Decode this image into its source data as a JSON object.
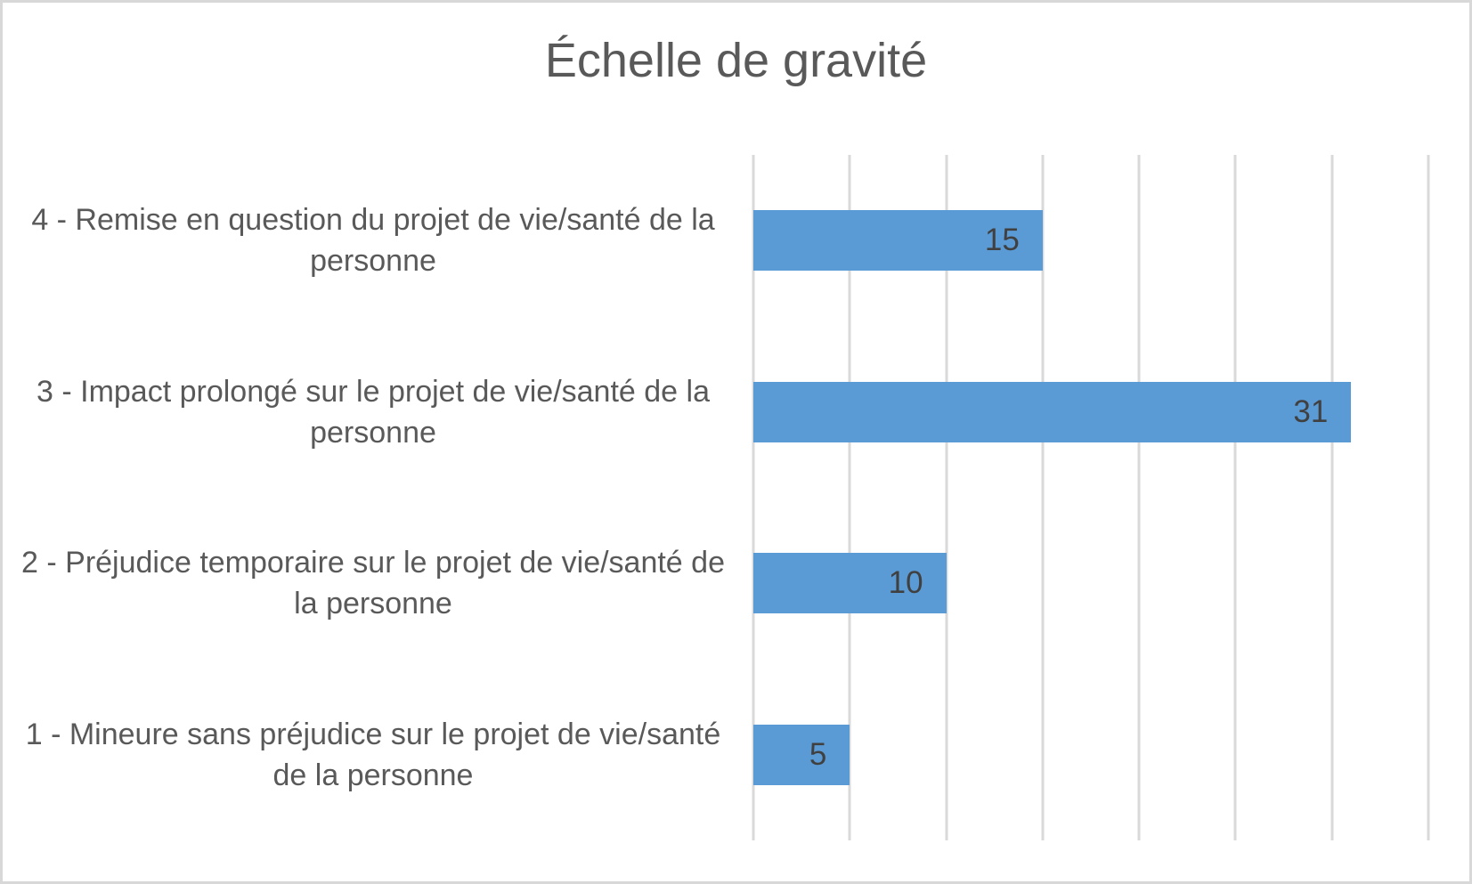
{
  "chart_data": {
    "type": "bar",
    "orientation": "horizontal",
    "title": "Échelle de gravité",
    "categories": [
      "4 - Remise en question du projet de vie/santé de la personne",
      "3 - Impact prolongé sur le projet de vie/santé de la personne",
      "2 - Préjudice temporaire sur le projet de vie/santé de la personne",
      "1 - Mineure sans préjudice sur le projet de vie/santé de la personne"
    ],
    "values": [
      15,
      31,
      10,
      5
    ],
    "xlabel": "",
    "ylabel": "",
    "xlim": [
      0,
      35
    ],
    "gridline_step": 5,
    "grid": true,
    "legend": false,
    "data_labels_position": "inside-end",
    "colors": {
      "bar": "#5B9BD5",
      "gridline": "#D9D9D9",
      "title_text": "#595959",
      "category_text": "#595959",
      "data_label_text": "#404040",
      "frame_border": "#D8D8D8",
      "background": "#FFFFFF"
    }
  }
}
